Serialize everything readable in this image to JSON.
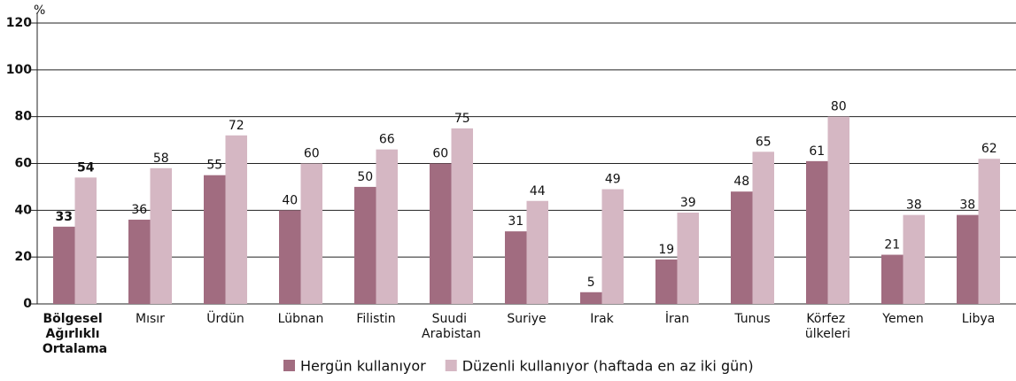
{
  "chart_data": {
    "type": "bar",
    "y_label": "%",
    "categories": [
      "Bölgesel Ağırlıklı Ortalama",
      "Mısır",
      "Ürdün",
      "Lübnan",
      "Filistin",
      "Suudi Arabistan",
      "Suriye",
      "Irak",
      "İran",
      "Tunus",
      "Körfez ülkeleri",
      "Yemen",
      "Libya"
    ],
    "series": [
      {
        "name": "Hergün kullanıyor",
        "color": "#a16c80",
        "values": [
          33,
          36,
          55,
          40,
          50,
          60,
          31,
          5,
          19,
          48,
          61,
          21,
          38
        ]
      },
      {
        "name": "Düzenli kullanıyor (haftada en az iki gün)",
        "color": "#d5b7c3",
        "values": [
          54,
          58,
          72,
          60,
          66,
          75,
          44,
          49,
          39,
          65,
          80,
          38,
          62
        ]
      }
    ],
    "ylim": [
      0,
      120
    ],
    "yticks": [
      0,
      20,
      40,
      60,
      80,
      100,
      120
    ],
    "grid": true
  }
}
